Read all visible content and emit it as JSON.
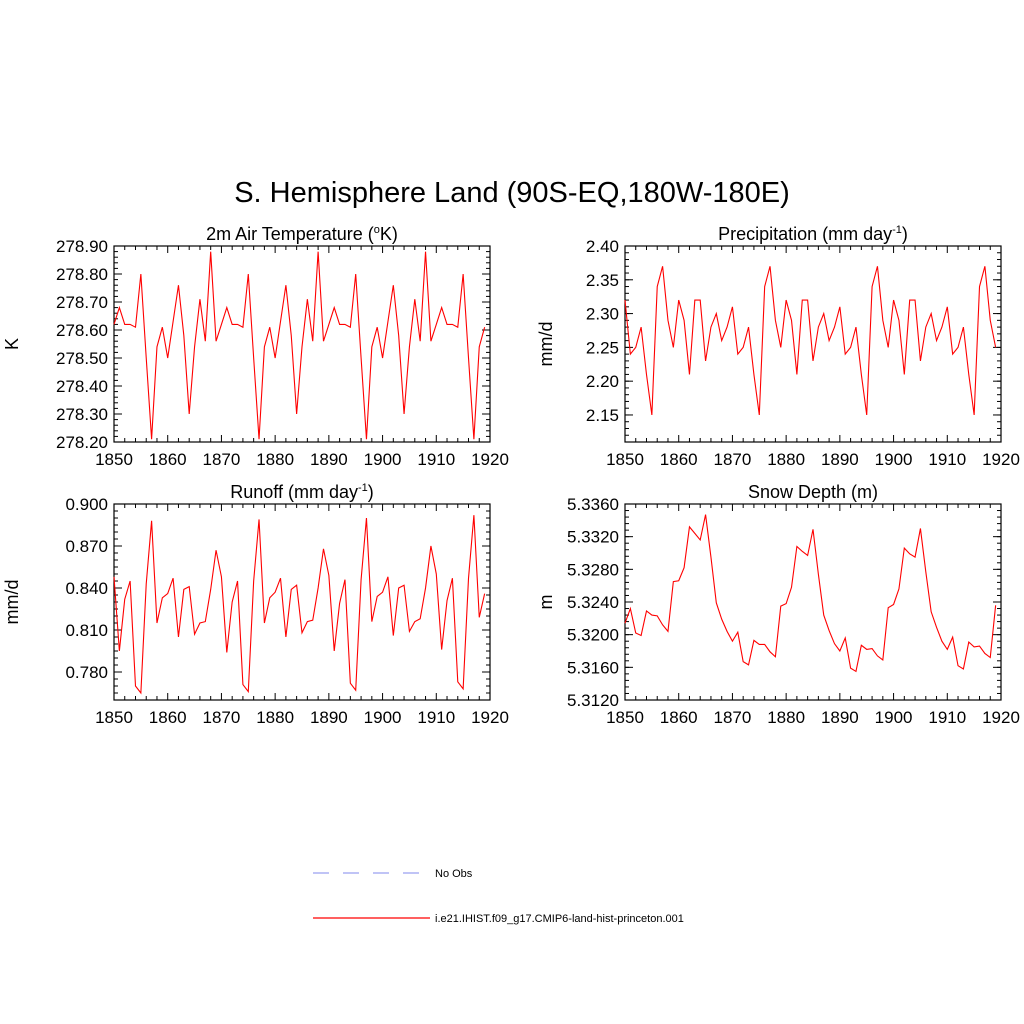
{
  "figure": {
    "title": "S. Hemisphere Land (90S-EQ,180W-180E)",
    "line_color": "#ff0000",
    "obs_color": "#9aa0f0"
  },
  "legend": {
    "items": [
      {
        "label": "No Obs",
        "style": "dashed",
        "color": "#9aa0f0"
      },
      {
        "label": "i.e21.IHIST.f09_g17.CMIP6-land-hist-princeton.001",
        "style": "solid",
        "color": "#ff0000"
      }
    ]
  },
  "chart_data": [
    {
      "type": "line",
      "title_main": "2m Air Temperature (",
      "title_sup": "o",
      "title_end": "K)",
      "ylabel": "K",
      "xlim": [
        1850,
        1920
      ],
      "ylim": [
        278.2,
        278.9
      ],
      "xticks": [
        1850,
        1860,
        1870,
        1880,
        1890,
        1900,
        1910,
        1920
      ],
      "yticks": [
        278.2,
        278.3,
        278.4,
        278.5,
        278.6,
        278.7,
        278.8,
        278.9
      ],
      "yminor": 0.02,
      "ytick_decimals": 2,
      "series": [
        {
          "x": [
            1850,
            1851,
            1852,
            1853,
            1854,
            1855,
            1856,
            1857,
            1858,
            1859,
            1860,
            1861,
            1862,
            1863,
            1864,
            1865,
            1866,
            1867,
            1868,
            1869,
            1870,
            1871,
            1872,
            1873,
            1874,
            1875,
            1876,
            1877,
            1878,
            1879,
            1880,
            1881,
            1882,
            1883,
            1884,
            1885,
            1886,
            1887,
            1888,
            1889,
            1890,
            1891,
            1892,
            1893,
            1894,
            1895,
            1896,
            1897,
            1898,
            1899,
            1900,
            1901,
            1902,
            1903,
            1904,
            1905,
            1906,
            1907,
            1908,
            1909,
            1910,
            1911,
            1912,
            1913,
            1914,
            1915,
            1916,
            1917,
            1918,
            1919
          ],
          "y": [
            278.62,
            278.68,
            278.62,
            278.62,
            278.61,
            278.8,
            278.5,
            278.21,
            278.54,
            278.61,
            278.5,
            278.63,
            278.76,
            278.58,
            278.3,
            278.54,
            278.71,
            278.56,
            278.88,
            278.56,
            278.62,
            278.68,
            278.62,
            278.62,
            278.61,
            278.8,
            278.5,
            278.21,
            278.54,
            278.61,
            278.5,
            278.63,
            278.76,
            278.58,
            278.3,
            278.54,
            278.71,
            278.56,
            278.88,
            278.56,
            278.62,
            278.68,
            278.62,
            278.62,
            278.61,
            278.8,
            278.5,
            278.21,
            278.54,
            278.61,
            278.5,
            278.63,
            278.76,
            278.58,
            278.3,
            278.54,
            278.71,
            278.56,
            278.88,
            278.56,
            278.62,
            278.68,
            278.62,
            278.62,
            278.61,
            278.8,
            278.5,
            278.21,
            278.54,
            278.61
          ]
        }
      ]
    },
    {
      "type": "line",
      "title_main": "Precipitation (mm day",
      "title_sup": "-1",
      "title_end": ")",
      "ylabel": "mm/d",
      "xlim": [
        1850,
        1920
      ],
      "ylim": [
        2.11,
        2.4
      ],
      "xticks": [
        1850,
        1860,
        1870,
        1880,
        1890,
        1900,
        1910,
        1920
      ],
      "yticks": [
        2.15,
        2.2,
        2.25,
        2.3,
        2.35,
        2.4
      ],
      "yminor": 0.01,
      "ytick_decimals": 2,
      "series": [
        {
          "x": [
            1850,
            1851,
            1852,
            1853,
            1854,
            1855,
            1856,
            1857,
            1858,
            1859,
            1860,
            1861,
            1862,
            1863,
            1864,
            1865,
            1866,
            1867,
            1868,
            1869,
            1870,
            1871,
            1872,
            1873,
            1874,
            1875,
            1876,
            1877,
            1878,
            1879,
            1880,
            1881,
            1882,
            1883,
            1884,
            1885,
            1886,
            1887,
            1888,
            1889,
            1890,
            1891,
            1892,
            1893,
            1894,
            1895,
            1896,
            1897,
            1898,
            1899,
            1900,
            1901,
            1902,
            1903,
            1904,
            1905,
            1906,
            1907,
            1908,
            1909,
            1910,
            1911,
            1912,
            1913,
            1914,
            1915,
            1916,
            1917,
            1918,
            1919
          ],
          "y": [
            2.32,
            2.24,
            2.25,
            2.28,
            2.21,
            2.15,
            2.34,
            2.37,
            2.29,
            2.25,
            2.32,
            2.29,
            2.21,
            2.32,
            2.32,
            2.23,
            2.28,
            2.3,
            2.26,
            2.28,
            2.31,
            2.24,
            2.25,
            2.28,
            2.21,
            2.15,
            2.34,
            2.37,
            2.29,
            2.25,
            2.32,
            2.29,
            2.21,
            2.32,
            2.32,
            2.23,
            2.28,
            2.3,
            2.26,
            2.28,
            2.31,
            2.24,
            2.25,
            2.28,
            2.21,
            2.15,
            2.34,
            2.37,
            2.29,
            2.25,
            2.32,
            2.29,
            2.21,
            2.32,
            2.32,
            2.23,
            2.28,
            2.3,
            2.26,
            2.28,
            2.31,
            2.24,
            2.25,
            2.28,
            2.21,
            2.15,
            2.34,
            2.37,
            2.29,
            2.25
          ]
        }
      ]
    },
    {
      "type": "line",
      "title_main": "Runoff (mm day",
      "title_sup": "-1",
      "title_end": ")",
      "ylabel": "mm/d",
      "xlim": [
        1850,
        1920
      ],
      "ylim": [
        0.76,
        0.9
      ],
      "xticks": [
        1850,
        1860,
        1870,
        1880,
        1890,
        1900,
        1910,
        1920
      ],
      "yticks": [
        0.78,
        0.81,
        0.84,
        0.87,
        0.9
      ],
      "yminor": 0.005,
      "ytick_decimals": 3,
      "series": [
        {
          "x": [
            1850,
            1851,
            1852,
            1853,
            1854,
            1855,
            1856,
            1857,
            1858,
            1859,
            1860,
            1861,
            1862,
            1863,
            1864,
            1865,
            1866,
            1867,
            1868,
            1869,
            1870,
            1871,
            1872,
            1873,
            1874,
            1875,
            1876,
            1877,
            1878,
            1879,
            1880,
            1881,
            1882,
            1883,
            1884,
            1885,
            1886,
            1887,
            1888,
            1889,
            1890,
            1891,
            1892,
            1893,
            1894,
            1895,
            1896,
            1897,
            1898,
            1899,
            1900,
            1901,
            1902,
            1903,
            1904,
            1905,
            1906,
            1907,
            1908,
            1909,
            1910,
            1911,
            1912,
            1913,
            1914,
            1915,
            1916,
            1917,
            1918,
            1919
          ],
          "y": [
            0.848,
            0.795,
            0.832,
            0.845,
            0.77,
            0.765,
            0.843,
            0.888,
            0.815,
            0.833,
            0.836,
            0.847,
            0.805,
            0.839,
            0.841,
            0.807,
            0.815,
            0.816,
            0.839,
            0.867,
            0.848,
            0.794,
            0.83,
            0.845,
            0.771,
            0.766,
            0.845,
            0.889,
            0.815,
            0.833,
            0.837,
            0.847,
            0.805,
            0.839,
            0.842,
            0.808,
            0.816,
            0.817,
            0.84,
            0.868,
            0.849,
            0.795,
            0.829,
            0.846,
            0.772,
            0.767,
            0.846,
            0.89,
            0.816,
            0.834,
            0.837,
            0.848,
            0.806,
            0.84,
            0.842,
            0.809,
            0.816,
            0.818,
            0.84,
            0.87,
            0.85,
            0.796,
            0.831,
            0.847,
            0.773,
            0.768,
            0.847,
            0.892,
            0.819,
            0.836
          ]
        }
      ]
    },
    {
      "type": "line",
      "title_main": "Snow Depth (m)",
      "title_sup": "",
      "title_end": "",
      "ylabel": "m",
      "xlim": [
        1850,
        1920
      ],
      "ylim": [
        5.312,
        5.336
      ],
      "xticks": [
        1850,
        1860,
        1870,
        1880,
        1890,
        1900,
        1910,
        1920
      ],
      "yticks": [
        5.312,
        5.316,
        5.32,
        5.324,
        5.328,
        5.332,
        5.336
      ],
      "yminor": 0.0008,
      "ytick_decimals": 4,
      "series": [
        {
          "x": [
            1850,
            1851,
            1852,
            1853,
            1854,
            1855,
            1856,
            1857,
            1858,
            1859,
            1860,
            1861,
            1862,
            1863,
            1864,
            1865,
            1866,
            1867,
            1868,
            1869,
            1870,
            1871,
            1872,
            1873,
            1874,
            1875,
            1876,
            1877,
            1878,
            1879,
            1880,
            1881,
            1882,
            1883,
            1884,
            1885,
            1886,
            1887,
            1888,
            1889,
            1890,
            1891,
            1892,
            1893,
            1894,
            1895,
            1896,
            1897,
            1898,
            1899,
            1900,
            1901,
            1902,
            1903,
            1904,
            1905,
            1906,
            1907,
            1908,
            1909,
            1910,
            1911,
            1912,
            1913,
            1914,
            1915,
            1916,
            1917,
            1918,
            1919
          ],
          "y": [
            5.3214,
            5.3232,
            5.3202,
            5.3199,
            5.3229,
            5.3224,
            5.3223,
            5.3212,
            5.3204,
            5.3265,
            5.3266,
            5.3282,
            5.3332,
            5.3324,
            5.3316,
            5.3347,
            5.3295,
            5.3239,
            5.3219,
            5.3204,
            5.3192,
            5.3203,
            5.3167,
            5.3163,
            5.3193,
            5.3188,
            5.3188,
            5.3179,
            5.3173,
            5.3235,
            5.3238,
            5.3258,
            5.3308,
            5.3302,
            5.3297,
            5.3329,
            5.3274,
            5.3224,
            5.3205,
            5.3189,
            5.318,
            5.3196,
            5.3159,
            5.3155,
            5.3187,
            5.3182,
            5.3183,
            5.3174,
            5.3169,
            5.3233,
            5.3237,
            5.3256,
            5.3306,
            5.3299,
            5.3295,
            5.333,
            5.3277,
            5.3228,
            5.3209,
            5.3192,
            5.3182,
            5.3197,
            5.3162,
            5.3158,
            5.3191,
            5.3185,
            5.3186,
            5.3177,
            5.3172,
            5.3236
          ]
        }
      ]
    }
  ]
}
